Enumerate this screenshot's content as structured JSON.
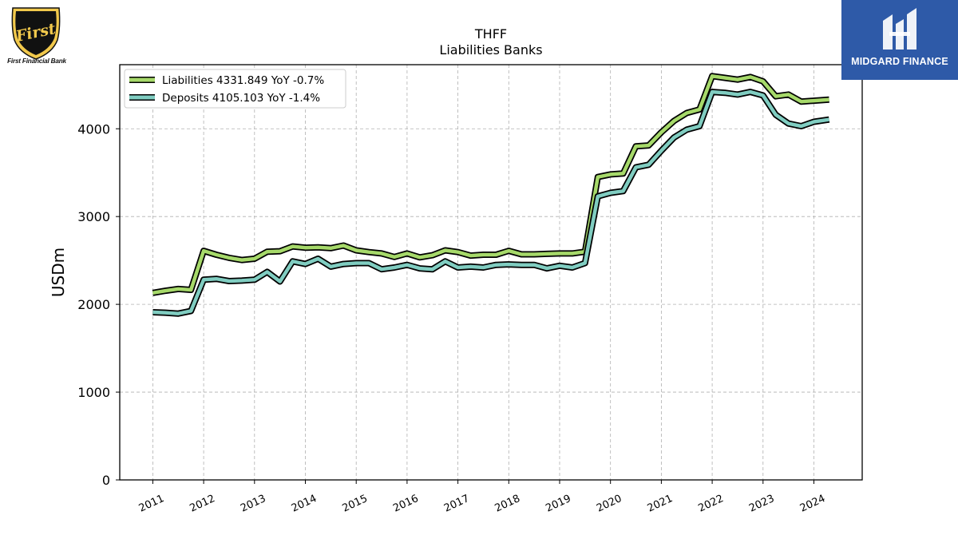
{
  "brand_left": {
    "name": "First Financial Bank",
    "emblem_text": "First"
  },
  "brand_right": {
    "name": "MIDGARD FINANCE"
  },
  "chart_data": {
    "type": "line",
    "title": "THFF",
    "subtitle": "Liabilities Banks",
    "xlabel": "",
    "ylabel": "USDm",
    "ylim": [
      0,
      4730
    ],
    "xlim": [
      2010.35,
      2024.95
    ],
    "yticks": [
      0,
      1000,
      2000,
      3000,
      4000
    ],
    "xticks": [
      "2011",
      "2012",
      "2013",
      "2014",
      "2015",
      "2016",
      "2017",
      "2018",
      "2019",
      "2020",
      "2021",
      "2022",
      "2023",
      "2024"
    ],
    "grid": true,
    "legend_position": "top-left",
    "x": [
      2011.0,
      2011.25,
      2011.5,
      2011.75,
      2012.0,
      2012.25,
      2012.5,
      2012.75,
      2013.0,
      2013.25,
      2013.5,
      2013.75,
      2014.0,
      2014.25,
      2014.5,
      2014.75,
      2015.0,
      2015.25,
      2015.5,
      2015.75,
      2016.0,
      2016.25,
      2016.5,
      2016.75,
      2017.0,
      2017.25,
      2017.5,
      2017.75,
      2018.0,
      2018.25,
      2018.5,
      2018.75,
      2019.0,
      2019.25,
      2019.5,
      2019.75,
      2020.0,
      2020.25,
      2020.5,
      2020.75,
      2021.0,
      2021.25,
      2021.5,
      2021.75,
      2022.0,
      2022.25,
      2022.5,
      2022.75,
      2023.0,
      2023.25,
      2023.5,
      2023.75,
      2024.0,
      2024.3
    ],
    "series": [
      {
        "name": "Liabilities",
        "legend_label": "Liabilities  4331.849 YoY -0.7%",
        "color": "#a6d96a",
        "values": [
          2130,
          2155,
          2175,
          2165,
          2610,
          2565,
          2530,
          2505,
          2520,
          2600,
          2605,
          2660,
          2645,
          2650,
          2640,
          2670,
          2615,
          2595,
          2580,
          2540,
          2580,
          2535,
          2560,
          2615,
          2595,
          2555,
          2565,
          2565,
          2610,
          2570,
          2570,
          2575,
          2580,
          2580,
          2600,
          3450,
          3480,
          3490,
          3800,
          3810,
          3960,
          4090,
          4180,
          4220,
          4600,
          4580,
          4560,
          4590,
          4540,
          4370,
          4390,
          4310,
          4320,
          4332
        ]
      },
      {
        "name": "Deposits",
        "legend_label": "Deposits  4105.103 YoY -1.4%",
        "color": "#80cdc1",
        "values": [
          1910,
          1905,
          1895,
          1925,
          2280,
          2290,
          2265,
          2270,
          2280,
          2370,
          2260,
          2490,
          2460,
          2520,
          2430,
          2460,
          2470,
          2470,
          2400,
          2420,
          2450,
          2410,
          2400,
          2490,
          2420,
          2430,
          2420,
          2450,
          2455,
          2450,
          2450,
          2410,
          2440,
          2420,
          2470,
          3230,
          3270,
          3290,
          3560,
          3590,
          3750,
          3900,
          3990,
          4030,
          4420,
          4410,
          4390,
          4420,
          4380,
          4160,
          4060,
          4030,
          4080,
          4105
        ]
      }
    ]
  }
}
